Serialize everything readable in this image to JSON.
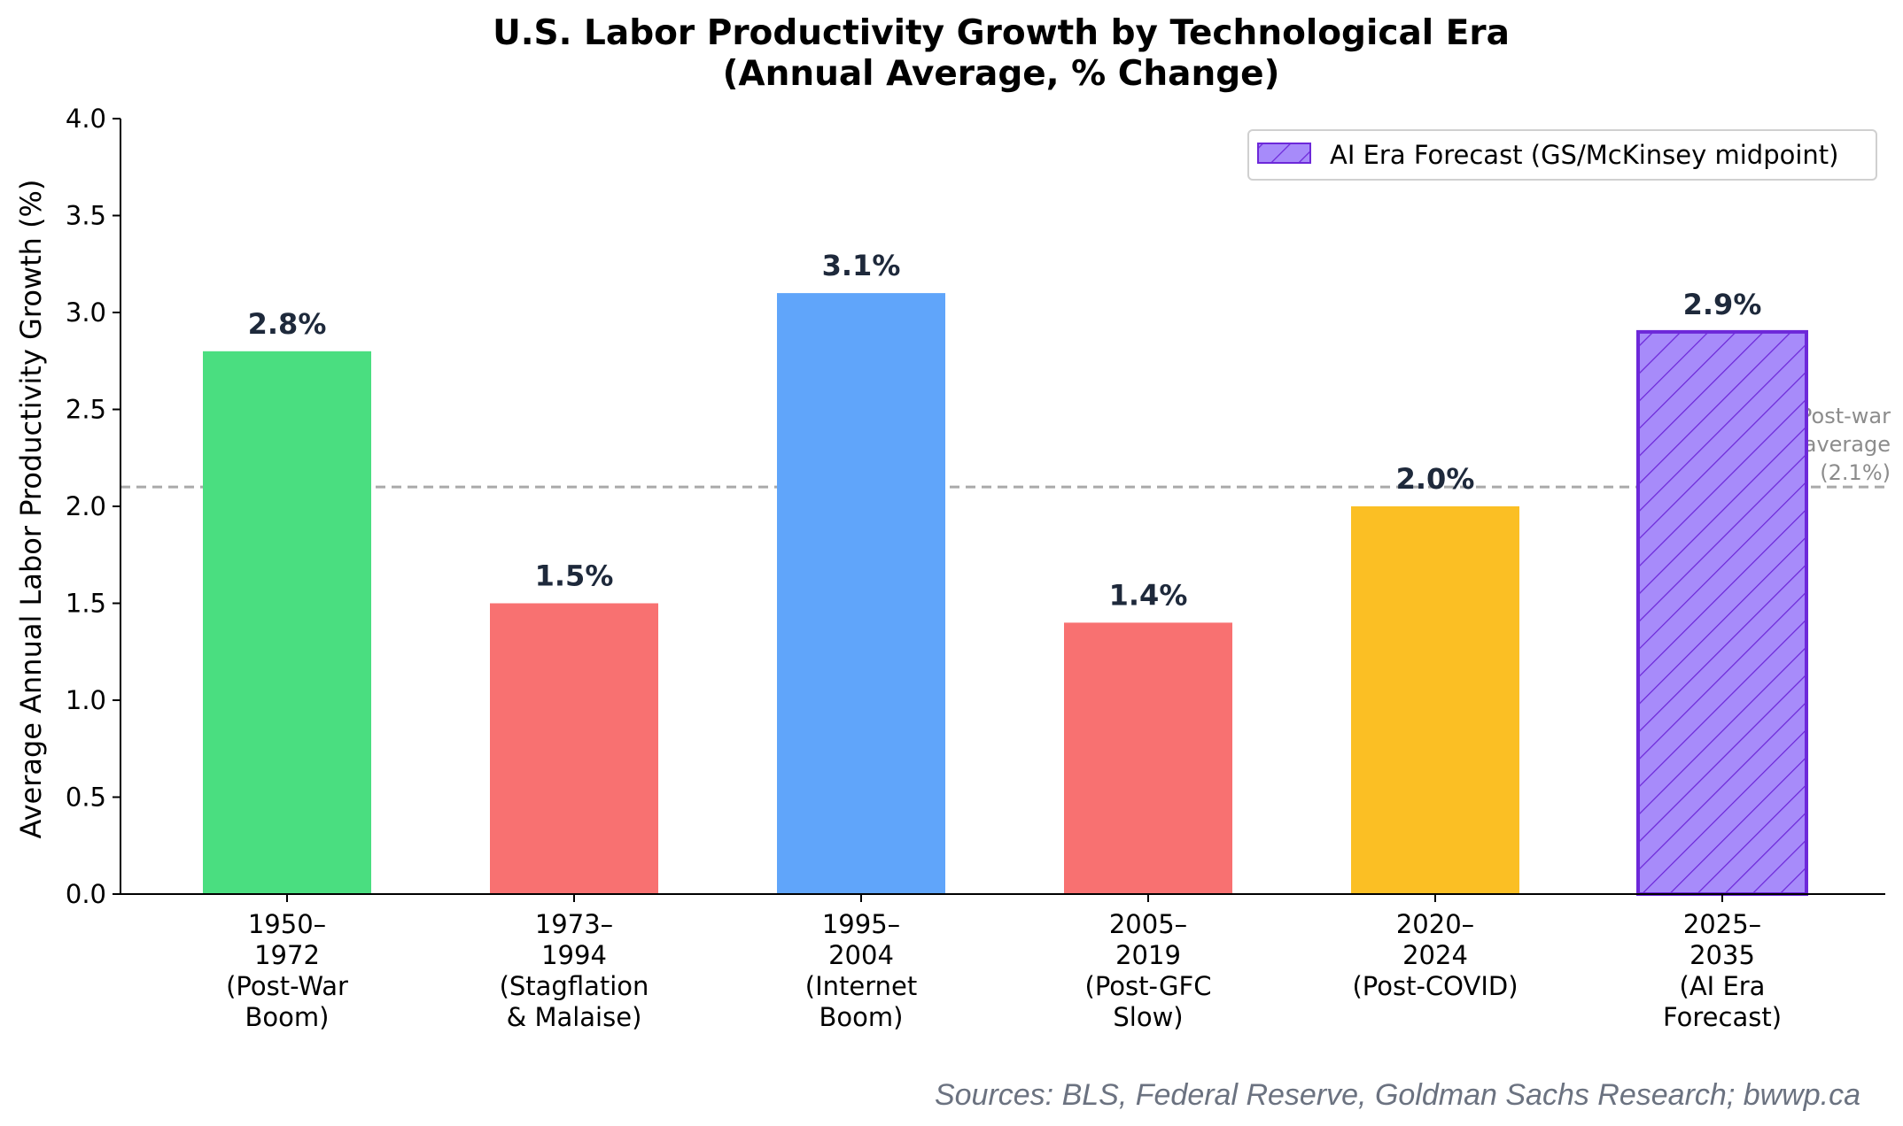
{
  "chart_data": {
    "type": "bar",
    "title": "U.S. Labor Productivity Growth by Technological Era",
    "subtitle": "(Annual Average, % Change)",
    "xlabel": "",
    "ylabel": "Average Annual Labor Productivity Growth (%)",
    "ylim": [
      0,
      4.0
    ],
    "yticks": [
      "0.0",
      "0.5",
      "1.0",
      "1.5",
      "2.0",
      "2.5",
      "3.0",
      "3.5",
      "4.0"
    ],
    "categories": [
      [
        "1950–",
        "1972",
        "(Post-War",
        "Boom)"
      ],
      [
        "1973–",
        "1994",
        "(Stagflation",
        "& Malaise)"
      ],
      [
        "1995–",
        "2004",
        "(Internet",
        "Boom)"
      ],
      [
        "2005–",
        "2019",
        "(Post-GFC",
        "Slow)"
      ],
      [
        "2020–",
        "2024",
        "(Post-COVID)"
      ],
      [
        "2025–",
        "2035",
        "(AI Era",
        "Forecast)"
      ]
    ],
    "values": [
      2.8,
      1.5,
      3.1,
      1.4,
      2.0,
      2.9
    ],
    "value_labels": [
      "2.8%",
      "1.5%",
      "3.1%",
      "1.4%",
      "2.0%",
      "2.9%"
    ],
    "colors": [
      "#4ade80",
      "#f87171",
      "#60a5fa",
      "#f87171",
      "#fbbf24",
      "#a78bfa"
    ],
    "hatched": [
      false,
      false,
      false,
      false,
      false,
      true
    ],
    "hatch_edge_color": "#6d28d9",
    "reference_line": {
      "value": 2.1,
      "label": [
        "Post-war",
        "average",
        "(2.1%)"
      ],
      "style": "dashed",
      "color": "#aaaaaa"
    },
    "legend": {
      "position": "top-right",
      "entries": [
        "AI Era Forecast (GS/McKinsey midpoint)"
      ]
    },
    "grid": false
  },
  "footer": {
    "source": "Sources: BLS, Federal Reserve, Goldman Sachs Research; bwwp.ca"
  }
}
